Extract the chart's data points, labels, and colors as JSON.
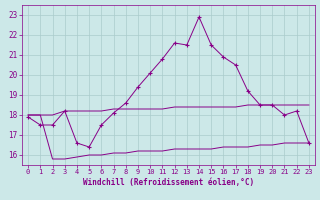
{
  "xlabel": "Windchill (Refroidissement éolien,°C)",
  "xlim": [
    -0.5,
    23.5
  ],
  "ylim": [
    15.5,
    23.5
  ],
  "xticks": [
    0,
    1,
    2,
    3,
    4,
    5,
    6,
    7,
    8,
    9,
    10,
    11,
    12,
    13,
    14,
    15,
    16,
    17,
    18,
    19,
    20,
    21,
    22,
    23
  ],
  "yticks": [
    16,
    17,
    18,
    19,
    20,
    21,
    22,
    23
  ],
  "bg_color": "#cce8e8",
  "line_color": "#880088",
  "grid_color": "#aacccc",
  "main_x": [
    0,
    1,
    2,
    3,
    4,
    5,
    6,
    7,
    8,
    9,
    10,
    11,
    12,
    13,
    14,
    15,
    16,
    17,
    18,
    19,
    20,
    21,
    22,
    23
  ],
  "main_y": [
    17.9,
    17.5,
    17.5,
    18.2,
    16.6,
    16.4,
    17.5,
    18.1,
    18.6,
    19.4,
    20.1,
    20.8,
    21.6,
    21.5,
    22.9,
    21.5,
    20.9,
    20.5,
    19.2,
    18.5,
    18.5,
    18.0,
    18.2,
    16.6
  ],
  "upper_x": [
    0,
    1,
    2,
    3,
    4,
    5,
    6,
    7,
    8,
    9,
    10,
    11,
    12,
    13,
    14,
    15,
    16,
    17,
    18,
    19,
    20,
    21,
    22,
    23
  ],
  "upper_y": [
    18.0,
    18.0,
    18.0,
    18.2,
    18.2,
    18.2,
    18.2,
    18.3,
    18.3,
    18.3,
    18.3,
    18.3,
    18.4,
    18.4,
    18.4,
    18.4,
    18.4,
    18.4,
    18.5,
    18.5,
    18.5,
    18.5,
    18.5,
    18.5
  ],
  "lower_x": [
    0,
    1,
    2,
    3,
    4,
    5,
    6,
    7,
    8,
    9,
    10,
    11,
    12,
    13,
    14,
    15,
    16,
    17,
    18,
    19,
    20,
    21,
    22,
    23
  ],
  "lower_y": [
    18.0,
    18.0,
    15.8,
    15.8,
    15.9,
    16.0,
    16.0,
    16.1,
    16.1,
    16.2,
    16.2,
    16.2,
    16.3,
    16.3,
    16.3,
    16.3,
    16.4,
    16.4,
    16.4,
    16.5,
    16.5,
    16.6,
    16.6,
    16.6
  ]
}
